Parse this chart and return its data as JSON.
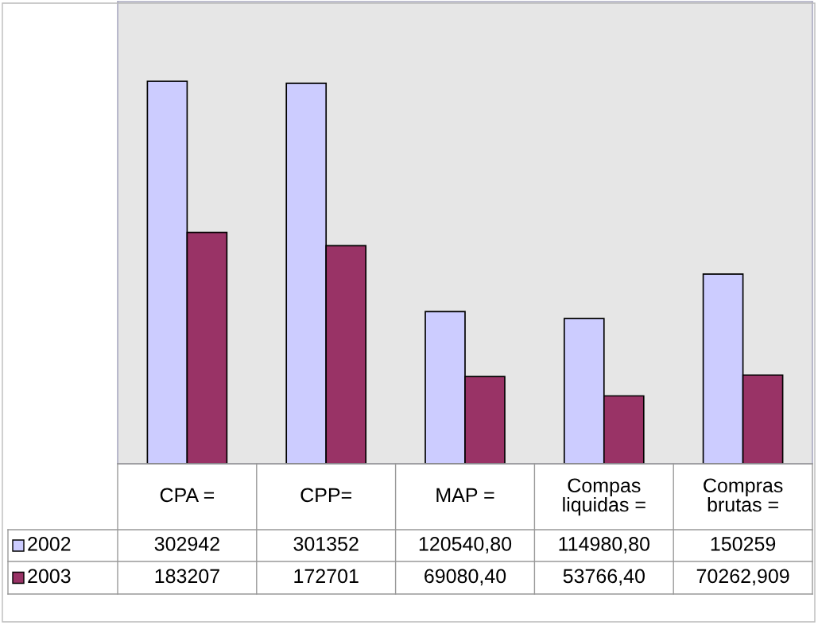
{
  "chart_data": {
    "type": "bar",
    "categories": [
      "CPA =",
      "CPP=",
      "MAP =",
      "Compas\nliquidas =",
      "Compras\nbrutas ="
    ],
    "series": [
      {
        "name": "2002",
        "color": "#ccccff",
        "values": [
          302942,
          301352,
          120540.8,
          114980.8,
          150259
        ],
        "value_labels": [
          "302942",
          "301352",
          "120540,80",
          "114980,80",
          "150259"
        ]
      },
      {
        "name": "2003",
        "color": "#993366",
        "values": [
          183207,
          172701,
          69080.4,
          53766.4,
          70262.909
        ],
        "value_labels": [
          "183207",
          "172701",
          "69080,40",
          "53766,40",
          "70262,909"
        ]
      }
    ],
    "ylim": [
      0,
      366000
    ],
    "data_labels": true,
    "legend": "bottom left"
  }
}
